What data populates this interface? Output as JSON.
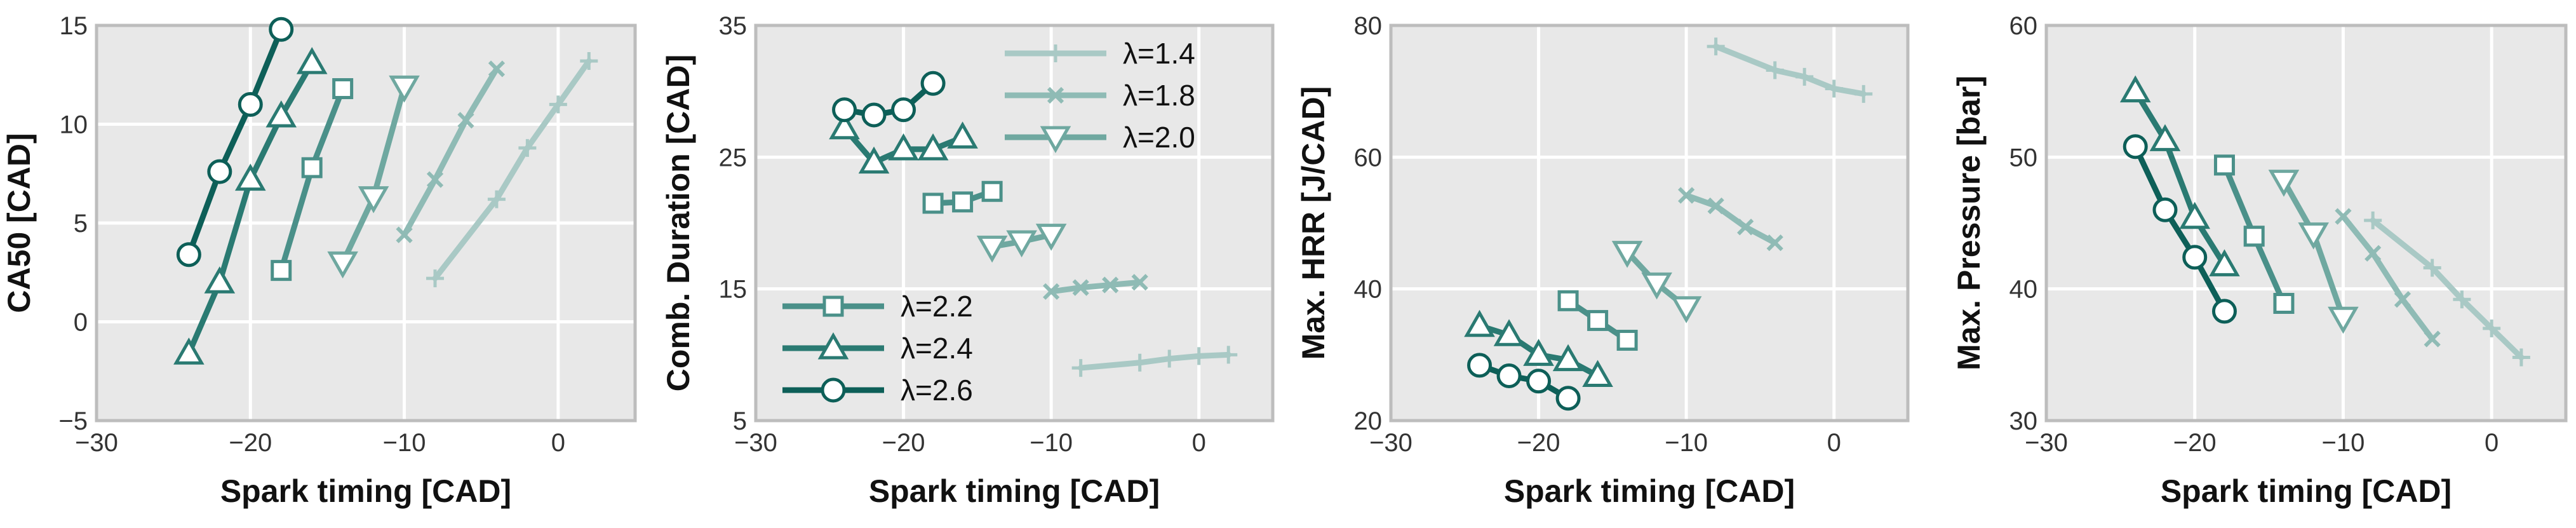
{
  "chart_data": [
    {
      "type": "line",
      "xlabel": "Spark timing [CAD]",
      "ylabel": "CA50 [CAD]",
      "xlim": [
        -30,
        5
      ],
      "ylim": [
        -5,
        15
      ],
      "xticks": [
        -30,
        -20,
        -10,
        0
      ],
      "yticks": [
        -5,
        0,
        5,
        10,
        15
      ],
      "xtick_labels": [
        "−30",
        "−20",
        "−10",
        "0"
      ],
      "ytick_labels": [
        "−5",
        "0",
        "5",
        "10",
        "15"
      ],
      "grid": true,
      "legend": null,
      "series": [
        {
          "name": "λ=1.4",
          "marker": "plus",
          "color": "#a9c9c5",
          "x": [
            -8,
            -4,
            -2,
            0,
            2
          ],
          "y": [
            2.2,
            6.2,
            8.8,
            11.0,
            13.2
          ]
        },
        {
          "name": "λ=1.8",
          "marker": "x",
          "color": "#8fbbb5",
          "x": [
            -10,
            -8,
            -6,
            -4
          ],
          "y": [
            4.4,
            7.2,
            10.2,
            12.8
          ]
        },
        {
          "name": "λ=2.0",
          "marker": "tri_down",
          "color": "#6fa8a0",
          "x": [
            -14,
            -12,
            -10
          ],
          "y": [
            3.0,
            6.3,
            11.9
          ]
        },
        {
          "name": "λ=2.2",
          "marker": "square",
          "color": "#4a9089",
          "x": [
            -18,
            -16,
            -14
          ],
          "y": [
            2.6,
            7.8,
            11.8
          ]
        },
        {
          "name": "λ=2.4",
          "marker": "tri_up",
          "color": "#2a7a72",
          "x": [
            -24,
            -22,
            -20,
            -18,
            -16
          ],
          "y": [
            -1.6,
            2.0,
            7.2,
            10.4,
            13.1
          ]
        },
        {
          "name": "λ=2.6",
          "marker": "circle",
          "color": "#0d5f58",
          "x": [
            -24,
            -22,
            -20,
            -18
          ],
          "y": [
            3.4,
            7.6,
            11.0,
            14.8
          ]
        }
      ]
    },
    {
      "type": "line",
      "xlabel": "Spark timing [CAD]",
      "ylabel": "Comb. Duration [CAD]",
      "xlim": [
        -30,
        5
      ],
      "ylim": [
        5,
        35
      ],
      "xticks": [
        -30,
        -20,
        -10,
        0
      ],
      "yticks": [
        5,
        15,
        25,
        35
      ],
      "xtick_labels": [
        "−30",
        "−20",
        "−10",
        "0"
      ],
      "ytick_labels": [
        "5",
        "15",
        "25",
        "35"
      ],
      "grid": true,
      "legend": "split",
      "series": [
        {
          "name": "λ=1.4",
          "marker": "plus",
          "color": "#a9c9c5",
          "x": [
            -8,
            -4,
            -2,
            0,
            2
          ],
          "y": [
            9.0,
            9.4,
            9.7,
            9.9,
            10.0
          ]
        },
        {
          "name": "λ=1.8",
          "marker": "x",
          "color": "#8fbbb5",
          "x": [
            -10,
            -8,
            -6,
            -4
          ],
          "y": [
            14.8,
            15.1,
            15.3,
            15.5
          ]
        },
        {
          "name": "λ=2.0",
          "marker": "tri_down",
          "color": "#6fa8a0",
          "x": [
            -14,
            -12,
            -10
          ],
          "y": [
            18.2,
            18.6,
            19.1
          ]
        },
        {
          "name": "λ=2.2",
          "marker": "square",
          "color": "#4a9089",
          "x": [
            -18,
            -16,
            -14
          ],
          "y": [
            21.5,
            21.6,
            22.4
          ]
        },
        {
          "name": "λ=2.4",
          "marker": "tri_up",
          "color": "#2a7a72",
          "x": [
            -24,
            -22,
            -20,
            -18,
            -16
          ],
          "y": [
            27.2,
            24.6,
            25.6,
            25.6,
            26.5
          ]
        },
        {
          "name": "λ=2.6",
          "marker": "circle",
          "color": "#0d5f58",
          "x": [
            -24,
            -22,
            -20,
            -18
          ],
          "y": [
            28.6,
            28.2,
            28.6,
            30.6
          ]
        }
      ]
    },
    {
      "type": "line",
      "xlabel": "Spark timing [CAD]",
      "ylabel": "Max. HRR [J/CAD]",
      "xlim": [
        -30,
        5
      ],
      "ylim": [
        20,
        80
      ],
      "xticks": [
        -30,
        -20,
        -10,
        0
      ],
      "yticks": [
        20,
        40,
        60,
        80
      ],
      "xtick_labels": [
        "−30",
        "−20",
        "−10",
        "0"
      ],
      "ytick_labels": [
        "20",
        "40",
        "60",
        "80"
      ],
      "grid": true,
      "legend": null,
      "series": [
        {
          "name": "λ=1.4",
          "marker": "plus",
          "color": "#a9c9c5",
          "x": [
            -8,
            -4,
            -2,
            0,
            2
          ],
          "y": [
            76.8,
            73.2,
            72.2,
            70.4,
            69.6
          ]
        },
        {
          "name": "λ=1.8",
          "marker": "x",
          "color": "#8fbbb5",
          "x": [
            -10,
            -8,
            -6,
            -4
          ],
          "y": [
            54.2,
            52.6,
            49.4,
            47.0
          ]
        },
        {
          "name": "λ=2.0",
          "marker": "tri_down",
          "color": "#6fa8a0",
          "x": [
            -14,
            -12,
            -10
          ],
          "y": [
            45.6,
            40.8,
            37.2
          ]
        },
        {
          "name": "λ=2.2",
          "marker": "square",
          "color": "#4a9089",
          "x": [
            -18,
            -16,
            -14
          ],
          "y": [
            38.2,
            35.2,
            32.2
          ]
        },
        {
          "name": "λ=2.4",
          "marker": "tri_up",
          "color": "#2a7a72",
          "x": [
            -24,
            -22,
            -20,
            -18,
            -16
          ],
          "y": [
            34.4,
            33.0,
            30.0,
            29.2,
            26.8
          ]
        },
        {
          "name": "λ=2.6",
          "marker": "circle",
          "color": "#0d5f58",
          "x": [
            -24,
            -22,
            -20,
            -18
          ],
          "y": [
            28.4,
            26.8,
            26.0,
            23.4
          ]
        }
      ]
    },
    {
      "type": "line",
      "xlabel": "Spark timing [CAD]",
      "ylabel": "Max. Pressure [bar]",
      "xlim": [
        -30,
        5
      ],
      "ylim": [
        30,
        60
      ],
      "xticks": [
        -30,
        -20,
        -10,
        0
      ],
      "yticks": [
        30,
        40,
        50,
        60
      ],
      "xtick_labels": [
        "−30",
        "−20",
        "−10",
        "0"
      ],
      "ytick_labels": [
        "30",
        "40",
        "50",
        "60"
      ],
      "grid": true,
      "legend": null,
      "series": [
        {
          "name": "λ=1.4",
          "marker": "plus",
          "color": "#a9c9c5",
          "x": [
            -8,
            -4,
            -2,
            0,
            2
          ],
          "y": [
            45.2,
            41.6,
            39.2,
            37.0,
            34.8
          ]
        },
        {
          "name": "λ=1.8",
          "marker": "x",
          "color": "#8fbbb5",
          "x": [
            -10,
            -8,
            -6,
            -4
          ],
          "y": [
            45.5,
            42.7,
            39.2,
            36.2
          ]
        },
        {
          "name": "λ=2.0",
          "marker": "tri_down",
          "color": "#6fa8a0",
          "x": [
            -14,
            -12,
            -10
          ],
          "y": [
            48.2,
            44.2,
            37.8
          ]
        },
        {
          "name": "λ=2.2",
          "marker": "square",
          "color": "#4a9089",
          "x": [
            -18,
            -16,
            -14
          ],
          "y": [
            49.4,
            44.0,
            38.9
          ]
        },
        {
          "name": "λ=2.4",
          "marker": "tri_up",
          "color": "#2a7a72",
          "x": [
            -24,
            -22,
            -20,
            -18
          ],
          "y": [
            55.0,
            51.3,
            45.4,
            41.8
          ]
        },
        {
          "name": "λ=2.6",
          "marker": "circle",
          "color": "#0d5f58",
          "x": [
            -24,
            -22,
            -20,
            -18
          ],
          "y": [
            50.8,
            46.0,
            42.4,
            38.3
          ]
        }
      ]
    }
  ],
  "legend": {
    "top": [
      {
        "series": 0,
        "label": "λ=1.4"
      },
      {
        "series": 1,
        "label": "λ=1.8"
      },
      {
        "series": 2,
        "label": "λ=2.0"
      }
    ],
    "bottom": [
      {
        "series": 3,
        "label": "λ=2.2"
      },
      {
        "series": 4,
        "label": "λ=2.4"
      },
      {
        "series": 5,
        "label": "λ=2.6"
      }
    ]
  },
  "colors": {
    "panel_bg": "#e8e8e8",
    "grid": "#ffffff",
    "frame": "#bdbdbd"
  }
}
